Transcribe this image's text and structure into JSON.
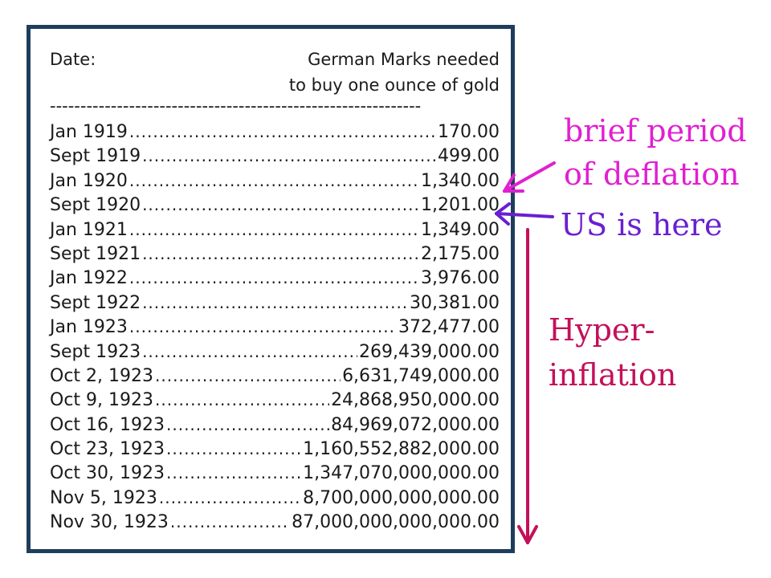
{
  "header": {
    "date_label": "Date:",
    "value_label_line1": "German Marks needed",
    "value_label_line2": "to buy one ounce of gold",
    "separator": "-------------------------------------------------------------"
  },
  "rows": [
    {
      "date": "Jan 1919",
      "value": "170.00"
    },
    {
      "date": "Sept 1919",
      "value": "499.00"
    },
    {
      "date": "Jan 1920",
      "value": "1,340.00"
    },
    {
      "date": "Sept 1920",
      "value": "1,201.00"
    },
    {
      "date": "Jan 1921",
      "value": "1,349.00"
    },
    {
      "date": "Sept 1921",
      "value": "2,175.00"
    },
    {
      "date": "Jan 1922",
      "value": "3,976.00"
    },
    {
      "date": "Sept 1922",
      "value": "30,381.00"
    },
    {
      "date": "Jan 1923",
      "value": "372,477.00"
    },
    {
      "date": "Sept 1923",
      "value": "269,439,000.00"
    },
    {
      "date": "Oct 2, 1923",
      "value": "6,631,749,000.00"
    },
    {
      "date": "Oct 9, 1923",
      "value": "24,868,950,000.00"
    },
    {
      "date": "Oct 16, 1923",
      "value": "84,969,072,000.00"
    },
    {
      "date": "Oct 23, 1923",
      "value": "1,160,552,882,000.00"
    },
    {
      "date": "Oct 30, 1923",
      "value": "1,347,070,000,000.00"
    },
    {
      "date": "Nov 5, 1923",
      "value": "8,700,000,000,000.00"
    },
    {
      "date": "Nov 30, 1923",
      "value": "87,000,000,000,000.00"
    }
  ],
  "annotations": {
    "deflation_line1": "brief period",
    "deflation_line2": "of deflation",
    "us_here": "US is here",
    "hyper_line1": "Hyper-",
    "hyper_line2": "inflation"
  },
  "colors": {
    "border": "#1e3d5c",
    "deflation": "#e020d0",
    "us_here": "#6a1fd0",
    "hyperinflation": "#c4105a"
  }
}
